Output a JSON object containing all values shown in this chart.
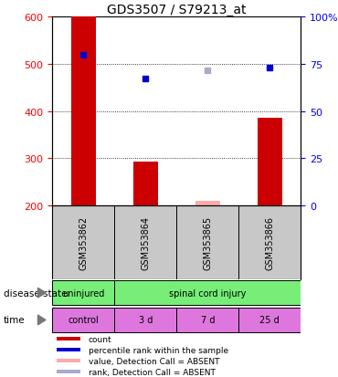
{
  "title": "GDS3507 / S79213_at",
  "samples": [
    "GSM353862",
    "GSM353864",
    "GSM353865",
    "GSM353866"
  ],
  "bar_values": [
    600,
    293,
    210,
    385
  ],
  "bar_colors": [
    "#cc0000",
    "#cc0000",
    "#ffaaaa",
    "#cc0000"
  ],
  "dot_values": [
    519,
    468,
    487,
    492
  ],
  "dot_colors": [
    "#0000cc",
    "#0000cc",
    "#aaaacc",
    "#0000cc"
  ],
  "ylim_left": [
    200,
    600
  ],
  "ylim_right": [
    0,
    100
  ],
  "yticks_left": [
    200,
    300,
    400,
    500,
    600
  ],
  "ytick_labels_right": [
    "0",
    "25",
    "50",
    "75",
    "100%"
  ],
  "yticks_right": [
    0,
    25,
    50,
    75,
    100
  ],
  "base_value": 200,
  "disease_state_labels": [
    "uninjured",
    "spinal cord injury"
  ],
  "disease_state_color": "#77ee77",
  "time_labels": [
    "control",
    "3 d",
    "7 d",
    "25 d"
  ],
  "time_color": "#dd77dd",
  "sample_box_color": "#c8c8c8",
  "legend_items": [
    {
      "color": "#cc0000",
      "label": "count"
    },
    {
      "color": "#0000cc",
      "label": "percentile rank within the sample"
    },
    {
      "color": "#ffaaaa",
      "label": "value, Detection Call = ABSENT"
    },
    {
      "color": "#aaaacc",
      "label": "rank, Detection Call = ABSENT"
    }
  ],
  "bar_width": 0.4,
  "title_fontsize": 10
}
